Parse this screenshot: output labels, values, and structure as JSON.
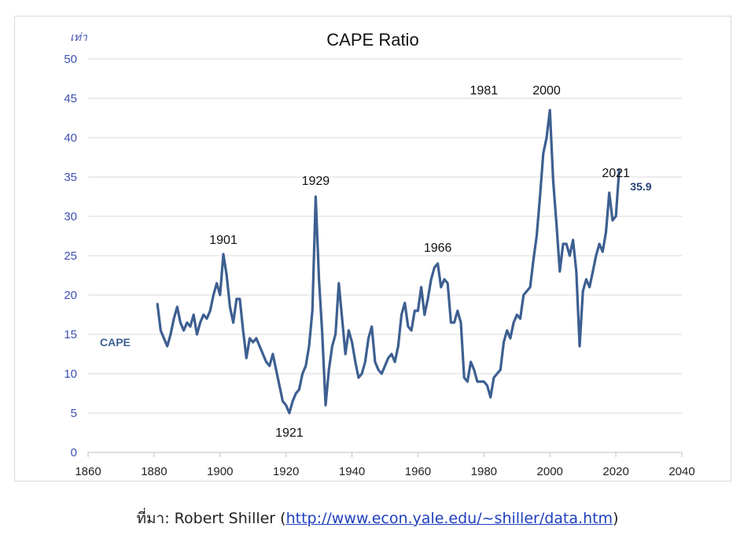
{
  "chart_data": {
    "type": "line",
    "title": "CAPE Ratio",
    "ylabel": "เท่า",
    "xlim": [
      1860,
      2040
    ],
    "ylim": [
      0,
      50
    ],
    "x_ticks": [
      1860,
      1880,
      1900,
      1920,
      1940,
      1960,
      1980,
      2000,
      2020,
      2040
    ],
    "y_ticks": [
      0,
      5,
      10,
      15,
      20,
      25,
      30,
      35,
      40,
      45,
      50
    ],
    "grid": true,
    "series": [
      {
        "name": "CAPE",
        "color": "#3d5f91",
        "x": [
          1881,
          1882,
          1883,
          1884,
          1885,
          1886,
          1887,
          1888,
          1889,
          1890,
          1891,
          1892,
          1893,
          1894,
          1895,
          1896,
          1897,
          1898,
          1899,
          1900,
          1901,
          1902,
          1903,
          1904,
          1905,
          1906,
          1907,
          1908,
          1909,
          1910,
          1911,
          1912,
          1913,
          1914,
          1915,
          1916,
          1917,
          1918,
          1919,
          1920,
          1921,
          1922,
          1923,
          1924,
          1925,
          1926,
          1927,
          1928,
          1929,
          1930,
          1931,
          1932,
          1933,
          1934,
          1935,
          1936,
          1937,
          1938,
          1939,
          1940,
          1941,
          1942,
          1943,
          1944,
          1945,
          1946,
          1947,
          1948,
          1949,
          1950,
          1951,
          1952,
          1953,
          1954,
          1955,
          1956,
          1957,
          1958,
          1959,
          1960,
          1961,
          1962,
          1963,
          1964,
          1965,
          1966,
          1967,
          1968,
          1969,
          1970,
          1971,
          1972,
          1973,
          1974,
          1975,
          1976,
          1977,
          1978,
          1979,
          1980,
          1981,
          1982,
          1983,
          1984,
          1985,
          1986,
          1987,
          1988,
          1989,
          1990,
          1991,
          1992,
          1993,
          1994,
          1995,
          1996,
          1997,
          1998,
          1999,
          2000,
          2001,
          2002,
          2003,
          2004,
          2005,
          2006,
          2007,
          2008,
          2009,
          2010,
          2011,
          2012,
          2013,
          2014,
          2015,
          2016,
          2017,
          2018,
          2019,
          2020,
          2021
        ],
        "values": [
          18.9,
          15.5,
          14.5,
          13.5,
          15.0,
          17.0,
          18.5,
          16.5,
          15.5,
          16.5,
          16.0,
          17.5,
          15.0,
          16.5,
          17.5,
          17.0,
          18.0,
          20.0,
          21.5,
          20.0,
          25.2,
          22.5,
          18.5,
          16.5,
          19.5,
          19.5,
          15.5,
          12.0,
          14.5,
          14.0,
          14.5,
          13.5,
          12.5,
          11.5,
          11.0,
          12.5,
          10.5,
          8.5,
          6.5,
          6.0,
          5.0,
          6.5,
          7.5,
          8.0,
          10.0,
          11.0,
          13.5,
          18.0,
          32.5,
          22.0,
          15.0,
          6.0,
          10.5,
          13.5,
          15.0,
          21.5,
          17.0,
          12.5,
          15.5,
          14.0,
          11.5,
          9.5,
          10.0,
          11.5,
          14.5,
          16.0,
          11.5,
          10.5,
          10.0,
          11.0,
          12.0,
          12.5,
          11.5,
          13.5,
          17.5,
          19.0,
          16.0,
          15.5,
          18.0,
          18.0,
          21.0,
          17.5,
          19.5,
          22.0,
          23.5,
          24.0,
          21.0,
          22.0,
          21.5,
          16.5,
          16.5,
          18.0,
          16.5,
          9.5,
          9.0,
          11.5,
          10.5,
          9.0,
          9.0,
          9.0,
          8.5,
          7.0,
          9.5,
          10.0,
          10.5,
          14.0,
          15.5,
          14.5,
          16.5,
          17.5,
          17.0,
          20.0,
          20.5,
          21.0,
          24.5,
          27.5,
          32.5,
          38.0,
          40.0,
          43.5,
          34.5,
          29.0,
          23.0,
          26.5,
          26.5,
          25.0,
          27.0,
          23.0,
          13.5,
          20.5,
          22.0,
          21.0,
          23.0,
          25.0,
          26.5,
          25.5,
          28.0,
          33.0,
          29.5,
          30.0,
          35.9
        ]
      }
    ],
    "series_label": "CAPE",
    "annotations": [
      {
        "text": "1901",
        "x": 1901,
        "y": 26.5
      },
      {
        "text": "1921",
        "x": 1921,
        "y": 2.0
      },
      {
        "text": "1929",
        "x": 1929,
        "y": 34.0
      },
      {
        "text": "1966",
        "x": 1966,
        "y": 25.5
      },
      {
        "text": "1981",
        "x": 1980,
        "y": 45.5
      },
      {
        "text": "2000",
        "x": 1999,
        "y": 45.5
      },
      {
        "text": "2021",
        "x": 2020,
        "y": 35.0
      }
    ],
    "last_value_label": "35.9"
  },
  "source": {
    "prefix": "ที่มา: Robert Shiller (",
    "link_text": "http://www.econ.yale.edu/~shiller/data.htm",
    "suffix": ")"
  }
}
